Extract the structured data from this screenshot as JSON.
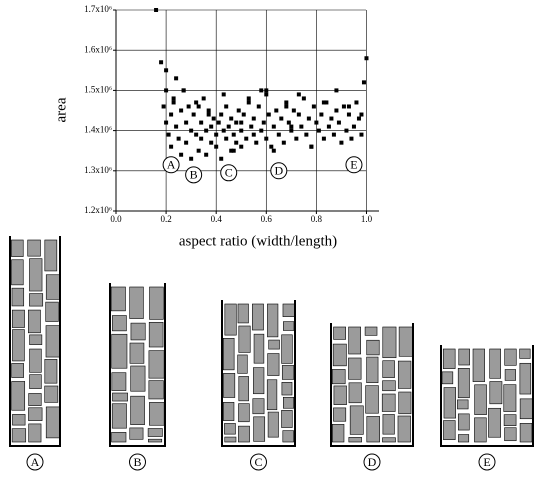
{
  "chart_data": {
    "type": "scatter",
    "xlabel": "aspect ratio (width/length)",
    "ylabel": "area",
    "xlim": [
      0,
      1.05
    ],
    "ylim": [
      1200000,
      1700000
    ],
    "xticks": [
      {
        "value": 0,
        "label": "0.0"
      },
      0.2,
      0.4,
      0.6,
      0.8,
      {
        "value": 1,
        "label": "1.0"
      }
    ],
    "yticks": [
      {
        "value": 1200000,
        "label": "1.2x10⁶"
      },
      {
        "value": 1300000,
        "label": "1.3x10⁶"
      },
      {
        "value": 1400000,
        "label": "1.4x10⁶"
      },
      {
        "value": 1500000,
        "label": "1.5x10⁶"
      },
      {
        "value": 1600000,
        "label": "1.6x10⁶"
      },
      {
        "value": 1700000,
        "label": "1.7x10⁶"
      }
    ],
    "grid": true,
    "color": "#000000",
    "x": [
      0.16,
      0.18,
      0.19,
      0.2,
      0.2,
      0.21,
      0.22,
      0.22,
      0.23,
      0.24,
      0.24,
      0.25,
      0.26,
      0.26,
      0.27,
      0.28,
      0.28,
      0.29,
      0.3,
      0.3,
      0.31,
      0.32,
      0.32,
      0.33,
      0.34,
      0.34,
      0.35,
      0.36,
      0.36,
      0.37,
      0.38,
      0.38,
      0.39,
      0.4,
      0.4,
      0.41,
      0.42,
      0.42,
      0.43,
      0.44,
      0.44,
      0.45,
      0.46,
      0.46,
      0.47,
      0.48,
      0.48,
      0.49,
      0.5,
      0.5,
      0.51,
      0.52,
      0.53,
      0.54,
      0.55,
      0.55,
      0.56,
      0.57,
      0.58,
      0.59,
      0.6,
      0.6,
      0.61,
      0.62,
      0.63,
      0.64,
      0.65,
      0.66,
      0.67,
      0.68,
      0.69,
      0.7,
      0.71,
      0.72,
      0.73,
      0.74,
      0.75,
      0.76,
      0.77,
      0.78,
      0.79,
      0.8,
      0.81,
      0.82,
      0.83,
      0.84,
      0.85,
      0.86,
      0.87,
      0.88,
      0.89,
      0.9,
      0.91,
      0.92,
      0.93,
      0.94,
      0.95,
      0.96,
      0.97,
      0.98,
      0.99,
      1.0,
      0.2,
      0.23,
      0.27,
      0.33,
      0.37,
      0.43,
      0.47,
      0.53,
      0.58,
      0.63,
      0.68,
      0.73,
      0.78,
      0.83,
      0.88,
      0.93,
      0.98,
      0.5,
      0.6,
      0.7
    ],
    "y": [
      1700000,
      1570000,
      1460000,
      1420000,
      1550000,
      1390000,
      1440000,
      1360000,
      1480000,
      1410000,
      1530000,
      1380000,
      1450000,
      1340000,
      1500000,
      1420000,
      1370000,
      1460000,
      1400000,
      1330000,
      1440000,
      1390000,
      1470000,
      1350000,
      1420000,
      1380000,
      1480000,
      1400000,
      1340000,
      1450000,
      1370000,
      1410000,
      1430000,
      1390000,
      1360000,
      1420000,
      1440000,
      1330000,
      1400000,
      1380000,
      1460000,
      1410000,
      1350000,
      1430000,
      1390000,
      1420000,
      1370000,
      1450000,
      1400000,
      1360000,
      1440000,
      1380000,
      1470000,
      1410000,
      1390000,
      1430000,
      1370000,
      1460000,
      1400000,
      1420000,
      1380000,
      1490000,
      1440000,
      1360000,
      1410000,
      1450000,
      1390000,
      1430000,
      1370000,
      1470000,
      1420000,
      1400000,
      1450000,
      1380000,
      1440000,
      1410000,
      1480000,
      1390000,
      1430000,
      1360000,
      1460000,
      1420000,
      1400000,
      1440000,
      1380000,
      1470000,
      1410000,
      1430000,
      1390000,
      1450000,
      1420000,
      1370000,
      1460000,
      1400000,
      1440000,
      1380000,
      1410000,
      1470000,
      1430000,
      1390000,
      1520000,
      1580000,
      1500000,
      1470000,
      1500000,
      1460000,
      1440000,
      1490000,
      1350000,
      1480000,
      1500000,
      1350000,
      1460000,
      1490000,
      1360000,
      1470000,
      1500000,
      1460000,
      1440000,
      1420000,
      1500000,
      1410000
    ],
    "annotations": [
      {
        "text": "A",
        "x": 0.22,
        "y": 1315000
      },
      {
        "text": "B",
        "x": 0.31,
        "y": 1290000
      },
      {
        "text": "C",
        "x": 0.45,
        "y": 1295000
      },
      {
        "text": "D",
        "x": 0.65,
        "y": 1300000
      },
      {
        "text": "E",
        "x": 0.95,
        "y": 1315000
      }
    ]
  },
  "floorplans": [
    {
      "label": "A"
    },
    {
      "label": "B"
    },
    {
      "label": "C"
    },
    {
      "label": "D"
    },
    {
      "label": "E"
    }
  ]
}
